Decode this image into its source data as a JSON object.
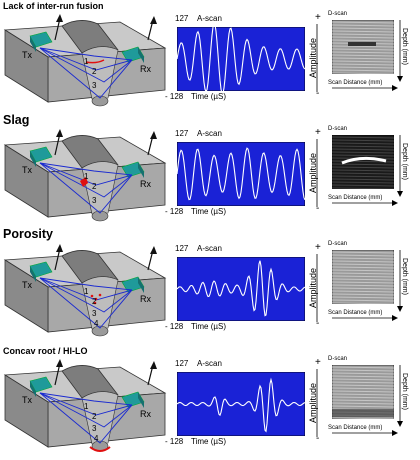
{
  "rows": [
    {
      "title": "Lack of inter-run fusion",
      "defect": "lof"
    },
    {
      "title": "Slag",
      "defect": "slag"
    },
    {
      "title": "Porosity",
      "defect": "porosity"
    },
    {
      "title": "Concav root / HI-LO",
      "defect": "root"
    }
  ],
  "labels": {
    "tx": "Tx",
    "rx": "Rx",
    "path_numbers": [
      "1",
      "2",
      "3",
      "4"
    ],
    "ascan_top": "127",
    "ascan_title": "A-scan",
    "ascan_bottom": "- 128",
    "time": "Time (µS)",
    "amplitude": "Amplitude",
    "plus": "+",
    "minus": "-",
    "dscan": "D-scan",
    "depth": "Depth (mm)",
    "scan_distance": "Scan Distance (mm)"
  },
  "colors": {
    "ascan_bg": "#1a22d6",
    "trace": "#ffffff",
    "beam": "#1a2ad0",
    "block_top": "#c9c9c9",
    "block_front": "#a8a8a8",
    "block_side": "#8a8a8a",
    "weld": "#7d7d7d",
    "probe": "#1f9a9a",
    "defect": "#e01010"
  }
}
